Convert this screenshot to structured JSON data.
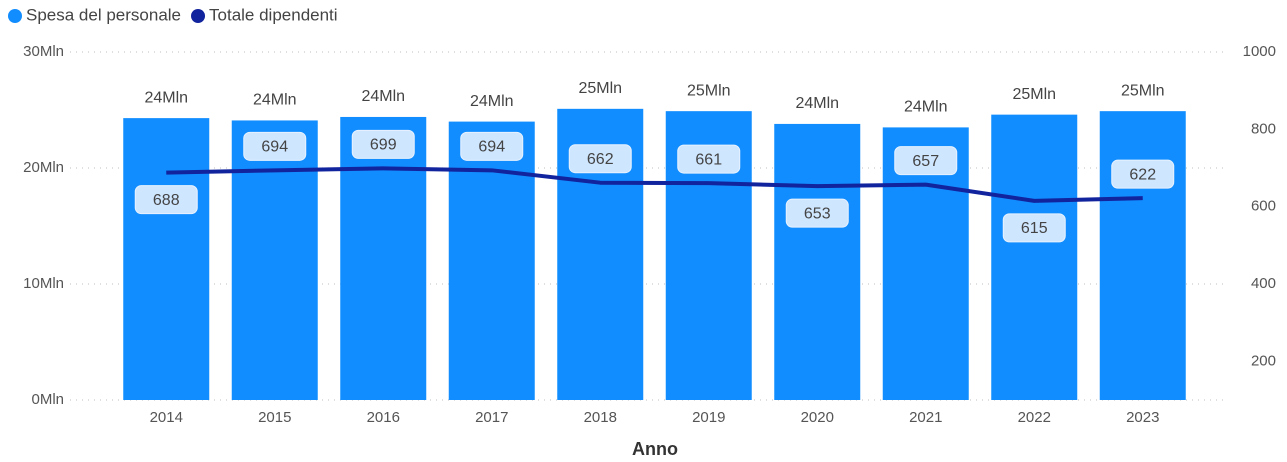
{
  "chart_data": {
    "type": "bar_line",
    "x_label": "Anno",
    "categories": [
      "2014",
      "2015",
      "2016",
      "2017",
      "2018",
      "2019",
      "2020",
      "2021",
      "2022",
      "2023"
    ],
    "series": [
      {
        "name": "Spesa del personale",
        "color": "#118DFF",
        "type": "bar",
        "values": [
          24300000,
          24100000,
          24400000,
          24000000,
          25100000,
          24900000,
          23800000,
          23500000,
          24600000,
          24900000
        ],
        "value_labels": [
          "24Mln",
          "24Mln",
          "24Mln",
          "24Mln",
          "25Mln",
          "25Mln",
          "24Mln",
          "24Mln",
          "25Mln",
          "25Mln"
        ]
      },
      {
        "name": "Totale dipendenti",
        "color": "#12239E",
        "type": "line",
        "axis": "y2",
        "values": [
          688,
          694,
          699,
          694,
          662,
          661,
          653,
          657,
          615,
          622
        ]
      }
    ],
    "ylim": [
      0,
      30000000
    ],
    "yticks": [
      {
        "value": 0,
        "label": "0Mln"
      },
      {
        "value": 10000000,
        "label": "10Mln"
      },
      {
        "value": 20000000,
        "label": "20Mln"
      },
      {
        "value": 30000000,
        "label": "30Mln"
      }
    ],
    "y2lim": [
      100,
      1000
    ],
    "y2ticks": [
      200,
      400,
      600,
      800,
      1000
    ],
    "grid": true,
    "legend": "top-left"
  }
}
